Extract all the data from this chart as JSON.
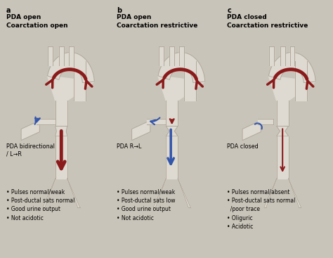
{
  "bg_color": "#c9c4b9",
  "panel_titles": [
    "a",
    "b",
    "c"
  ],
  "panel_subtitles": [
    "PDA open\nCoarctation open",
    "PDA open\nCoarctation restrictive",
    "PDA closed\nCoarctation restrictive"
  ],
  "pda_labels": [
    "PDA bidirectional\n/ L→R",
    "PDA R→L",
    "PDA closed"
  ],
  "bullet_texts": [
    "• Pulses normal/weak\n• Post-ductal sats normal\n• Good urine output\n• Not acidotic",
    "• Pulses normal/weak\n• Post-ductal sats low\n• Good urine output\n• Not acidotic",
    "• Pulses normal/absent\n• Post-ductal sats normal\n  /poor trace\n• Oliguric\n• Acidotic"
  ],
  "vessel_outline": "#b0a89a",
  "vessel_fill": "#dedad2",
  "red_color": "#8b1a1a",
  "blue_color": "#3355aa"
}
